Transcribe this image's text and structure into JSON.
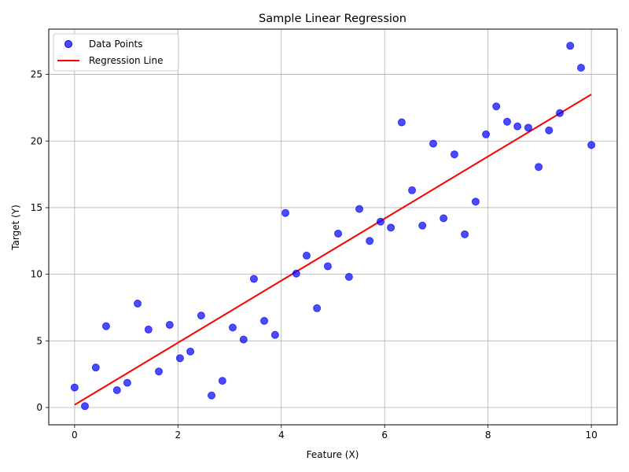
{
  "chart_data": {
    "type": "scatter",
    "title": "Sample Linear Regression",
    "xlabel": "Feature (X)",
    "ylabel": "Target (Y)",
    "xlim": [
      -0.5,
      10.5
    ],
    "ylim": [
      -1.3,
      28.4
    ],
    "xticks": [
      0,
      2,
      4,
      6,
      8,
      10
    ],
    "yticks": [
      0,
      5,
      10,
      15,
      20,
      25
    ],
    "grid": true,
    "legend_position": "top-left",
    "series": [
      {
        "name": "Data Points",
        "kind": "scatter",
        "color": "#0000ff",
        "x": [
          0.0,
          0.2,
          0.41,
          0.61,
          0.82,
          1.02,
          1.22,
          1.43,
          1.63,
          1.84,
          2.04,
          2.24,
          2.45,
          2.65,
          2.86,
          3.06,
          3.27,
          3.47,
          3.67,
          3.88,
          4.08,
          4.29,
          4.49,
          4.69,
          4.9,
          5.1,
          5.31,
          5.51,
          5.71,
          5.92,
          6.12,
          6.33,
          6.53,
          6.73,
          6.94,
          7.14,
          7.35,
          7.55,
          7.76,
          7.96,
          8.16,
          8.37,
          8.57,
          8.78,
          8.98,
          9.18,
          9.39,
          9.59,
          9.8,
          10.0
        ],
        "y": [
          1.5,
          0.1,
          3.0,
          6.1,
          1.3,
          1.85,
          7.8,
          5.85,
          2.7,
          6.2,
          3.7,
          4.2,
          6.9,
          0.9,
          2.0,
          6.0,
          5.1,
          9.65,
          6.5,
          5.45,
          14.6,
          10.05,
          11.4,
          7.45,
          10.6,
          13.05,
          9.8,
          14.9,
          12.5,
          13.95,
          13.5,
          21.4,
          16.3,
          13.65,
          19.8,
          14.2,
          19.0,
          13.0,
          15.45,
          20.5,
          22.6,
          21.45,
          21.1,
          21.0,
          18.05,
          20.8,
          22.1,
          27.15,
          25.5,
          19.7
        ]
      },
      {
        "name": "Regression Line",
        "kind": "line",
        "color": "#ff0000",
        "x": [
          0.0,
          10.0
        ],
        "y": [
          0.2,
          23.5
        ]
      }
    ]
  }
}
